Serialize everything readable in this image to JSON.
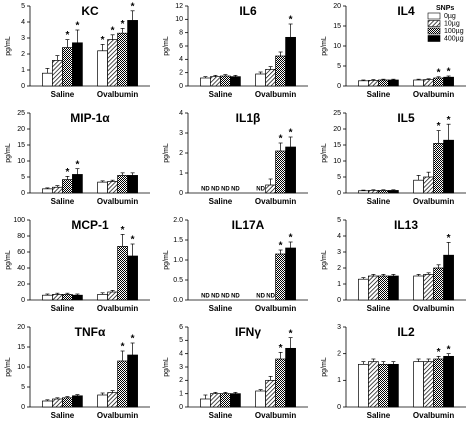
{
  "chart_data": [
    {
      "type": "bar",
      "title": "KC",
      "ylabel": "pg/mL",
      "categories": [
        "Saline",
        "Ovalbumin"
      ],
      "ylim": [
        0,
        5
      ],
      "yticks": [
        0,
        1,
        2,
        3,
        4,
        5
      ],
      "missing_label": "ND",
      "series": [
        {
          "pattern": "open",
          "values": [
            0.8,
            2.2
          ],
          "errors": [
            0.3,
            0.4
          ],
          "significance": [
            null,
            "*"
          ]
        },
        {
          "pattern": "hatch",
          "values": [
            1.6,
            2.9
          ],
          "errors": [
            0.3,
            0.3
          ],
          "significance": [
            null,
            "*"
          ]
        },
        {
          "pattern": "cross",
          "values": [
            2.4,
            3.3
          ],
          "errors": [
            0.5,
            0.3
          ],
          "significance": [
            "*",
            "*"
          ]
        },
        {
          "pattern": "solid",
          "values": [
            2.7,
            4.1
          ],
          "errors": [
            0.8,
            0.6
          ],
          "significance": [
            "*",
            "*"
          ]
        }
      ]
    },
    {
      "type": "bar",
      "title": "IL6",
      "ylabel": "pg/mL",
      "categories": [
        "Saline",
        "Ovalbumin"
      ],
      "ylim": [
        0,
        12
      ],
      "yticks": [
        0,
        2,
        4,
        6,
        8,
        10,
        12
      ],
      "missing_label": "ND",
      "series": [
        {
          "pattern": "open",
          "values": [
            1.2,
            1.8
          ],
          "errors": [
            0.2,
            0.3
          ],
          "significance": [
            null,
            null
          ]
        },
        {
          "pattern": "hatch",
          "values": [
            1.4,
            2.5
          ],
          "errors": [
            0.2,
            0.4
          ],
          "significance": [
            null,
            null
          ]
        },
        {
          "pattern": "cross",
          "values": [
            1.5,
            4.5
          ],
          "errors": [
            0.2,
            0.6
          ],
          "significance": [
            null,
            null
          ]
        },
        {
          "pattern": "solid",
          "values": [
            1.4,
            7.3
          ],
          "errors": [
            0.2,
            2.0
          ],
          "significance": [
            null,
            "*"
          ]
        }
      ]
    },
    {
      "type": "bar",
      "title": "IL4",
      "ylabel": "pg/mL",
      "categories": [
        "Saline",
        "Ovalbumin"
      ],
      "ylim": [
        0,
        20
      ],
      "yticks": [
        0,
        5,
        10,
        15,
        20
      ],
      "missing_label": "ND",
      "legend": {
        "title": "SNPs",
        "corner": "upper-right"
      },
      "series": [
        {
          "name": "0µg",
          "pattern": "open",
          "values": [
            1.3,
            1.5
          ],
          "errors": [
            0.2,
            0.2
          ],
          "significance": [
            null,
            null
          ]
        },
        {
          "name": "10µg",
          "pattern": "hatch",
          "values": [
            1.4,
            1.6
          ],
          "errors": [
            0.2,
            0.2
          ],
          "significance": [
            null,
            null
          ]
        },
        {
          "name": "100µg",
          "pattern": "cross",
          "values": [
            1.5,
            2.0
          ],
          "errors": [
            0.2,
            0.3
          ],
          "significance": [
            null,
            "*"
          ]
        },
        {
          "name": "400µg",
          "pattern": "solid",
          "values": [
            1.5,
            2.2
          ],
          "errors": [
            0.2,
            0.3
          ],
          "significance": [
            null,
            "*"
          ]
        }
      ]
    },
    {
      "type": "bar",
      "title": "MIP-1α",
      "ylabel": "pg/mL",
      "categories": [
        "Saline",
        "Ovalbumin"
      ],
      "ylim": [
        0,
        25
      ],
      "yticks": [
        0,
        5,
        10,
        15,
        20,
        25
      ],
      "missing_label": "ND",
      "series": [
        {
          "pattern": "open",
          "values": [
            1.3,
            3.4
          ],
          "errors": [
            0.3,
            0.4
          ],
          "significance": [
            null,
            null
          ]
        },
        {
          "pattern": "hatch",
          "values": [
            1.8,
            3.6
          ],
          "errors": [
            0.5,
            0.4
          ],
          "significance": [
            null,
            null
          ]
        },
        {
          "pattern": "cross",
          "values": [
            4.2,
            5.5
          ],
          "errors": [
            1.0,
            0.8
          ],
          "significance": [
            "*",
            null
          ]
        },
        {
          "pattern": "solid",
          "values": [
            5.8,
            5.5
          ],
          "errors": [
            1.8,
            0.8
          ],
          "significance": [
            "*",
            null
          ]
        }
      ]
    },
    {
      "type": "bar",
      "title": "IL1β",
      "ylabel": "pg/mL",
      "categories": [
        "Saline",
        "Ovalbumin"
      ],
      "ylim": [
        0,
        4
      ],
      "yticks": [
        0,
        1,
        2,
        3,
        4
      ],
      "missing_label": "ND",
      "series": [
        {
          "pattern": "open",
          "values": [
            null,
            null
          ],
          "errors": [
            null,
            null
          ],
          "significance": [
            null,
            null
          ]
        },
        {
          "pattern": "hatch",
          "values": [
            null,
            0.4
          ],
          "errors": [
            null,
            0.3
          ],
          "significance": [
            null,
            null
          ]
        },
        {
          "pattern": "cross",
          "values": [
            null,
            2.1
          ],
          "errors": [
            null,
            0.4
          ],
          "significance": [
            null,
            "*"
          ]
        },
        {
          "pattern": "solid",
          "values": [
            null,
            2.3
          ],
          "errors": [
            null,
            0.5
          ],
          "significance": [
            null,
            "*"
          ]
        }
      ]
    },
    {
      "type": "bar",
      "title": "IL5",
      "ylabel": "pg/mL",
      "categories": [
        "Saline",
        "Ovalbumin"
      ],
      "ylim": [
        0,
        25
      ],
      "yticks": [
        0,
        5,
        10,
        15,
        20,
        25
      ],
      "missing_label": "ND",
      "series": [
        {
          "pattern": "open",
          "values": [
            0.7,
            4.0
          ],
          "errors": [
            0.2,
            1.5
          ],
          "significance": [
            null,
            null
          ]
        },
        {
          "pattern": "hatch",
          "values": [
            0.8,
            5.0
          ],
          "errors": [
            0.2,
            1.5
          ],
          "significance": [
            null,
            null
          ]
        },
        {
          "pattern": "cross",
          "values": [
            0.8,
            15.5
          ],
          "errors": [
            0.2,
            4.0
          ],
          "significance": [
            null,
            "*"
          ]
        },
        {
          "pattern": "solid",
          "values": [
            0.8,
            16.5
          ],
          "errors": [
            0.2,
            5.0
          ],
          "significance": [
            null,
            "*"
          ]
        }
      ]
    },
    {
      "type": "bar",
      "title": "MCP-1",
      "ylabel": "pg/mL",
      "categories": [
        "Saline",
        "Ovalbumin"
      ],
      "ylim": [
        0,
        100
      ],
      "yticks": [
        0,
        20,
        40,
        60,
        80,
        100
      ],
      "missing_label": "ND",
      "series": [
        {
          "pattern": "open",
          "values": [
            6,
            7
          ],
          "errors": [
            1.5,
            2
          ],
          "significance": [
            null,
            null
          ]
        },
        {
          "pattern": "hatch",
          "values": [
            7,
            10
          ],
          "errors": [
            1.5,
            2
          ],
          "significance": [
            null,
            null
          ]
        },
        {
          "pattern": "cross",
          "values": [
            7,
            67
          ],
          "errors": [
            1.5,
            15
          ],
          "significance": [
            null,
            "*"
          ]
        },
        {
          "pattern": "solid",
          "values": [
            6,
            55
          ],
          "errors": [
            1.5,
            15
          ],
          "significance": [
            null,
            "*"
          ]
        }
      ]
    },
    {
      "type": "bar",
      "title": "IL17A",
      "ylabel": "pg/mL",
      "categories": [
        "Saline",
        "Ovalbumin"
      ],
      "ylim": [
        0,
        2
      ],
      "yticks": [
        {
          "value": 0,
          "label": "0.0"
        },
        {
          "value": 0.5,
          "label": "0.5"
        },
        {
          "value": 1,
          "label": "1.0"
        },
        {
          "value": 1.5,
          "label": "1.5"
        },
        {
          "value": 2,
          "label": "2.0"
        }
      ],
      "missing_label": "ND",
      "series": [
        {
          "pattern": "open",
          "values": [
            null,
            null
          ],
          "errors": [
            null,
            null
          ],
          "significance": [
            null,
            null
          ]
        },
        {
          "pattern": "hatch",
          "values": [
            null,
            null
          ],
          "errors": [
            null,
            null
          ],
          "significance": [
            null,
            null
          ]
        },
        {
          "pattern": "cross",
          "values": [
            null,
            1.15
          ],
          "errors": [
            null,
            0.1
          ],
          "significance": [
            null,
            "*"
          ]
        },
        {
          "pattern": "solid",
          "values": [
            null,
            1.3
          ],
          "errors": [
            null,
            0.15
          ],
          "significance": [
            null,
            "*"
          ]
        }
      ]
    },
    {
      "type": "bar",
      "title": "IL13",
      "ylabel": "pg/mL",
      "categories": [
        "Saline",
        "Ovalbumin"
      ],
      "ylim": [
        0,
        5
      ],
      "yticks": [
        0,
        1,
        2,
        3,
        4,
        5
      ],
      "missing_label": "ND",
      "series": [
        {
          "pattern": "open",
          "values": [
            1.3,
            1.5
          ],
          "errors": [
            0.1,
            0.1
          ],
          "significance": [
            null,
            null
          ]
        },
        {
          "pattern": "hatch",
          "values": [
            1.5,
            1.6
          ],
          "errors": [
            0.1,
            0.1
          ],
          "significance": [
            null,
            null
          ]
        },
        {
          "pattern": "cross",
          "values": [
            1.5,
            2.0
          ],
          "errors": [
            0.1,
            0.2
          ],
          "significance": [
            null,
            null
          ]
        },
        {
          "pattern": "solid",
          "values": [
            1.5,
            2.8
          ],
          "errors": [
            0.1,
            0.8
          ],
          "significance": [
            null,
            "*"
          ]
        }
      ]
    },
    {
      "type": "bar",
      "title": "TNFα",
      "ylabel": "pg/mL",
      "categories": [
        "Saline",
        "Ovalbumin"
      ],
      "ylim": [
        0,
        20
      ],
      "yticks": [
        0,
        5,
        10,
        15,
        20
      ],
      "missing_label": "ND",
      "series": [
        {
          "pattern": "open",
          "values": [
            1.5,
            3.0
          ],
          "errors": [
            0.3,
            0.5
          ],
          "significance": [
            null,
            null
          ]
        },
        {
          "pattern": "hatch",
          "values": [
            2.0,
            3.6
          ],
          "errors": [
            0.3,
            0.5
          ],
          "significance": [
            null,
            null
          ]
        },
        {
          "pattern": "cross",
          "values": [
            2.3,
            11.5
          ],
          "errors": [
            0.3,
            2.5
          ],
          "significance": [
            null,
            "*"
          ]
        },
        {
          "pattern": "solid",
          "values": [
            2.8,
            13.0
          ],
          "errors": [
            0.3,
            3.0
          ],
          "significance": [
            null,
            "*"
          ]
        }
      ]
    },
    {
      "type": "bar",
      "title": "IFNγ",
      "ylabel": "pg/mL",
      "categories": [
        "Saline",
        "Ovalbumin"
      ],
      "ylim": [
        0,
        6
      ],
      "yticks": [
        0,
        1,
        2,
        3,
        4,
        5,
        6
      ],
      "missing_label": "ND",
      "series": [
        {
          "pattern": "open",
          "values": [
            0.6,
            1.2
          ],
          "errors": [
            0.3,
            0.1
          ],
          "significance": [
            null,
            null
          ]
        },
        {
          "pattern": "hatch",
          "values": [
            1.0,
            2.0
          ],
          "errors": [
            0.1,
            0.3
          ],
          "significance": [
            null,
            null
          ]
        },
        {
          "pattern": "cross",
          "values": [
            1.0,
            3.6
          ],
          "errors": [
            0.1,
            0.5
          ],
          "significance": [
            null,
            "*"
          ]
        },
        {
          "pattern": "solid",
          "values": [
            1.0,
            4.4
          ],
          "errors": [
            0.1,
            0.8
          ],
          "significance": [
            null,
            "*"
          ]
        }
      ]
    },
    {
      "type": "bar",
      "title": "IL2",
      "ylabel": "pg/mL",
      "categories": [
        "Saline",
        "Ovalbumin"
      ],
      "ylim": [
        0,
        3
      ],
      "yticks": [
        0,
        1,
        2,
        3
      ],
      "missing_label": "ND",
      "series": [
        {
          "pattern": "open",
          "values": [
            1.6,
            1.7
          ],
          "errors": [
            0.1,
            0.1
          ],
          "significance": [
            null,
            null
          ]
        },
        {
          "pattern": "hatch",
          "values": [
            1.7,
            1.7
          ],
          "errors": [
            0.1,
            0.1
          ],
          "significance": [
            null,
            null
          ]
        },
        {
          "pattern": "cross",
          "values": [
            1.6,
            1.8
          ],
          "errors": [
            0.1,
            0.1
          ],
          "significance": [
            null,
            "*"
          ]
        },
        {
          "pattern": "solid",
          "values": [
            1.6,
            1.9
          ],
          "errors": [
            0.1,
            0.1
          ],
          "significance": [
            null,
            "*"
          ]
        }
      ]
    }
  ]
}
